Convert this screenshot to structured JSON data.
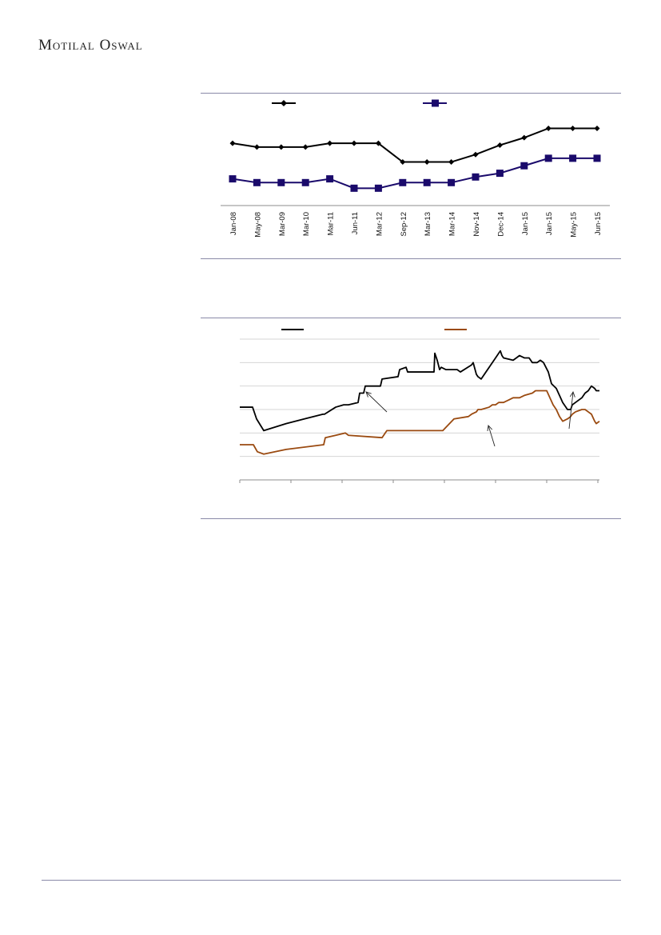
{
  "brand": {
    "name": "Motilal Oswal"
  },
  "colors": {
    "series1": "#000000",
    "series2": "#1a0a6b",
    "series3": "#9a4a10",
    "rule": "#8a8aa8"
  },
  "chart_data": [
    {
      "type": "line",
      "categories": [
        "Jan-08",
        "May-08",
        "Mar-09",
        "Mar-10",
        "Mar-11",
        "Jun-11",
        "Mar-12",
        "Sep-12",
        "Mar-13",
        "Mar-14",
        "Nov-14",
        "Dec-14",
        "Jan-15",
        "Jan-15",
        "May-15",
        "Jun-15"
      ],
      "ylim": [
        0,
        10
      ],
      "grid": false,
      "legend": "top",
      "series": [
        {
          "marker": "diamond",
          "values": [
            7.6,
            7.4,
            7.4,
            7.4,
            7.6,
            7.6,
            7.6,
            6.6,
            6.6,
            6.6,
            7.0,
            7.5,
            7.9,
            8.4,
            8.4,
            8.4
          ]
        },
        {
          "marker": "square",
          "values": [
            5.7,
            5.5,
            5.5,
            5.5,
            5.7,
            5.2,
            5.2,
            5.5,
            5.5,
            5.5,
            5.8,
            6.0,
            6.4,
            6.8,
            6.8,
            6.8
          ]
        }
      ]
    },
    {
      "type": "line",
      "x_range": [
        0,
        450
      ],
      "ylim": [
        0,
        6
      ],
      "grid": true,
      "legend": "top",
      "series": [
        {
          "x": [
            0,
            16,
            21,
            30,
            58,
            104,
            106,
            120,
            130,
            136,
            148,
            150,
            155,
            157,
            176,
            178,
            198,
            200,
            208,
            210,
            216,
            243,
            244,
            247,
            250,
            252,
            258,
            270,
            272,
            276,
            290,
            292,
            296,
            298,
            302,
            308,
            316,
            320,
            326,
            328,
            330,
            342,
            346,
            350,
            356,
            362,
            366,
            372,
            376,
            380,
            386,
            390,
            396,
            400,
            404,
            410,
            414,
            416,
            420,
            428,
            432,
            436,
            440,
            444,
            446,
            450
          ],
          "values": [
            3.1,
            3.1,
            2.6,
            2.1,
            2.4,
            2.8,
            2.8,
            3.1,
            3.2,
            3.2,
            3.3,
            3.7,
            3.7,
            4.0,
            4.0,
            4.3,
            4.4,
            4.7,
            4.8,
            4.6,
            4.6,
            4.6,
            5.4,
            5.1,
            4.7,
            4.8,
            4.7,
            4.7,
            4.7,
            4.6,
            4.9,
            5.0,
            4.5,
            4.4,
            4.3,
            4.6,
            5.0,
            5.2,
            5.5,
            5.3,
            5.2,
            5.1,
            5.2,
            5.3,
            5.2,
            5.2,
            5.0,
            5.0,
            5.1,
            5.0,
            4.6,
            4.1,
            3.9,
            3.6,
            3.3,
            3.0,
            3.0,
            3.2,
            3.3,
            3.5,
            3.7,
            3.8,
            4.0,
            3.9,
            3.8,
            3.8
          ]
        },
        {
          "x": [
            0,
            17,
            22,
            30,
            58,
            105,
            107,
            120,
            132,
            136,
            178,
            184,
            186,
            250,
            254,
            268,
            286,
            290,
            296,
            298,
            302,
            312,
            316,
            320,
            324,
            330,
            336,
            342,
            350,
            356,
            366,
            370,
            376,
            384,
            392,
            396,
            400,
            404,
            410,
            414,
            416,
            420,
            428,
            432,
            436,
            440,
            444,
            446,
            450
          ],
          "values": [
            1.5,
            1.5,
            1.2,
            1.1,
            1.3,
            1.5,
            1.8,
            1.9,
            2.0,
            1.9,
            1.8,
            2.1,
            2.1,
            2.1,
            2.1,
            2.6,
            2.7,
            2.8,
            2.9,
            3.0,
            3.0,
            3.1,
            3.2,
            3.2,
            3.3,
            3.3,
            3.4,
            3.5,
            3.5,
            3.6,
            3.7,
            3.8,
            3.8,
            3.8,
            3.2,
            3.0,
            2.7,
            2.5,
            2.6,
            2.7,
            2.8,
            2.9,
            3.0,
            3.0,
            2.9,
            2.8,
            2.5,
            2.4,
            2.5
          ]
        }
      ]
    }
  ]
}
